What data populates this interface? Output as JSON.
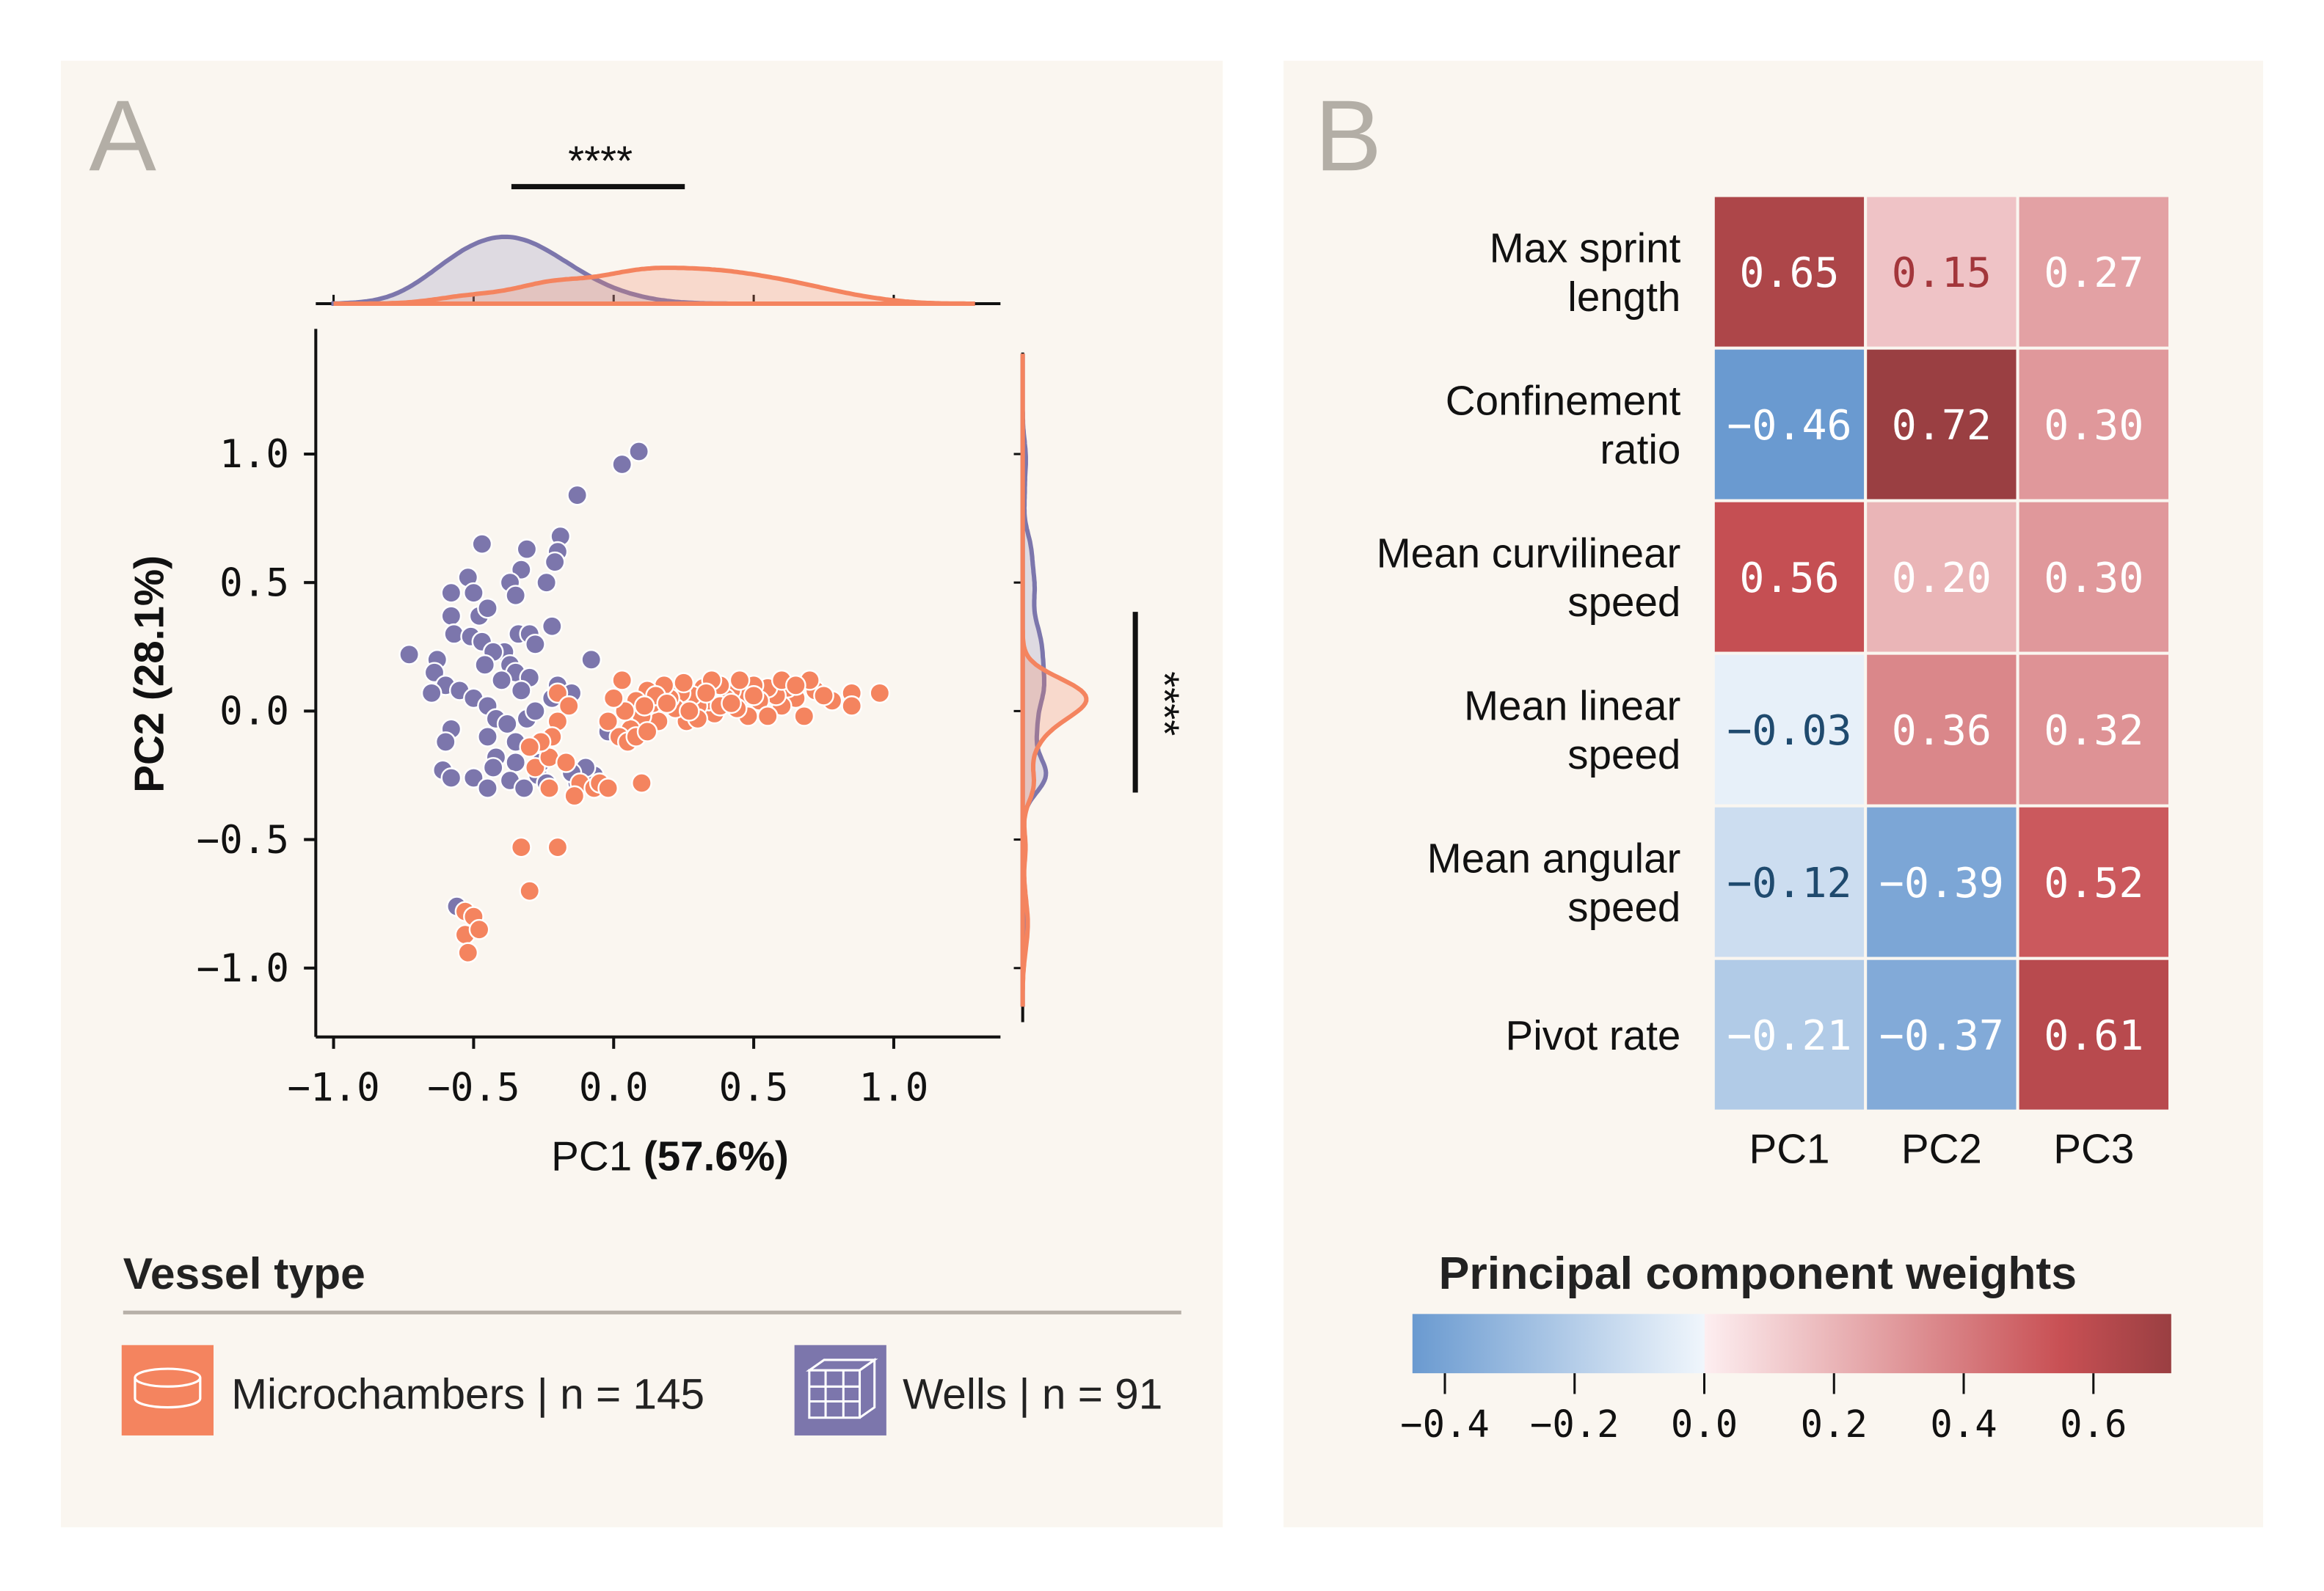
{
  "panel_a": {
    "letter": "A",
    "legend": {
      "title": "Vessel type",
      "items": [
        {
          "label": "Microchambers | n = 145",
          "color": "#f4845f",
          "icon": "cylinder-dish-icon"
        },
        {
          "label": "Wells | n = 91",
          "color": "#7c76ac",
          "icon": "well-plate-grid-icon"
        }
      ]
    }
  },
  "panel_b": {
    "letter": "B"
  },
  "chart_data": [
    {
      "type": "scatter",
      "xlabel_prefix": "PC1",
      "xlabel_pct": "(57.6%)",
      "ylabel_prefix": "PC2",
      "ylabel_pct": "(28.1%)",
      "xlim": [
        -1.05,
        1.35
      ],
      "ylim": [
        -1.18,
        1.48
      ],
      "xticks": [
        "−1.0",
        "−0.5",
        "0.0",
        "0.5",
        "1.0"
      ],
      "xtick_values": [
        -1.0,
        -0.5,
        0.0,
        0.5,
        1.0
      ],
      "yticks": [
        "1.0",
        "0.5",
        "0.0",
        "−0.5",
        "−1.0"
      ],
      "ytick_values": [
        1.0,
        0.5,
        0.0,
        -0.5,
        -1.0
      ],
      "marginals": "kde",
      "top_significance": "****",
      "right_significance": "****",
      "series": [
        {
          "name": "Microchambers",
          "color": "#f4845f",
          "points": [
            [
              0.95,
              0.07
            ],
            [
              0.85,
              0.07
            ],
            [
              0.85,
              0.02
            ],
            [
              0.78,
              0.04
            ],
            [
              0.72,
              0.08
            ],
            [
              0.68,
              -0.02
            ],
            [
              0.75,
              0.06
            ],
            [
              0.65,
              0.05
            ],
            [
              0.62,
              0.09
            ],
            [
              0.6,
              0.02
            ],
            [
              0.58,
              0.06
            ],
            [
              0.55,
              0.09
            ],
            [
              0.52,
              0.04
            ],
            [
              0.5,
              0.1
            ],
            [
              0.48,
              -0.02
            ],
            [
              0.46,
              0.06
            ],
            [
              0.44,
              0.01
            ],
            [
              0.42,
              0.08
            ],
            [
              0.4,
              0.05
            ],
            [
              0.38,
              0.1
            ],
            [
              0.36,
              -0.01
            ],
            [
              0.34,
              0.04
            ],
            [
              0.32,
              0.09
            ],
            [
              0.3,
              0.02
            ],
            [
              0.28,
              0.06
            ],
            [
              0.26,
              -0.04
            ],
            [
              0.24,
              0.07
            ],
            [
              0.22,
              0.01
            ],
            [
              0.2,
              0.05
            ],
            [
              0.18,
              0.1
            ],
            [
              0.16,
              -0.04
            ],
            [
              0.14,
              0.03
            ],
            [
              0.12,
              0.08
            ],
            [
              0.1,
              -0.02
            ],
            [
              0.08,
              0.04
            ],
            [
              0.06,
              -0.07
            ],
            [
              0.04,
              0.0
            ],
            [
              0.02,
              -0.1
            ],
            [
              0.0,
              0.05
            ],
            [
              -0.02,
              -0.04
            ],
            [
              0.05,
              -0.12
            ],
            [
              0.08,
              -0.1
            ],
            [
              0.12,
              -0.08
            ],
            [
              0.45,
              0.12
            ],
            [
              0.7,
              0.12
            ],
            [
              0.55,
              -0.02
            ],
            [
              0.38,
              0.02
            ],
            [
              0.3,
              -0.03
            ],
            [
              0.6,
              0.12
            ],
            [
              0.5,
              0.06
            ],
            [
              0.35,
              0.12
            ],
            [
              0.25,
              0.11
            ],
            [
              0.15,
              0.06
            ],
            [
              0.03,
              0.12
            ],
            [
              0.65,
              0.1
            ],
            [
              0.42,
              0.03
            ],
            [
              0.33,
              0.07
            ],
            [
              0.27,
              0.0
            ],
            [
              0.19,
              0.03
            ],
            [
              0.11,
              0.02
            ],
            [
              -0.2,
              0.07
            ],
            [
              -0.16,
              0.02
            ],
            [
              -0.2,
              -0.04
            ],
            [
              -0.28,
              -0.22
            ],
            [
              -0.23,
              -0.18
            ],
            [
              -0.17,
              -0.2
            ],
            [
              -0.12,
              -0.28
            ],
            [
              -0.07,
              -0.3
            ],
            [
              -0.05,
              -0.28
            ],
            [
              -0.02,
              -0.3
            ],
            [
              0.1,
              -0.28
            ],
            [
              -0.14,
              -0.33
            ],
            [
              -0.22,
              -0.1
            ],
            [
              -0.26,
              -0.12
            ],
            [
              -0.2,
              -0.53
            ],
            [
              -0.33,
              -0.53
            ],
            [
              -0.3,
              -0.7
            ],
            [
              -0.53,
              -0.78
            ],
            [
              -0.5,
              -0.8
            ],
            [
              -0.53,
              -0.87
            ],
            [
              -0.48,
              -0.85
            ],
            [
              -0.52,
              -0.94
            ],
            [
              -0.23,
              -0.3
            ],
            [
              -0.3,
              -0.14
            ]
          ]
        },
        {
          "name": "Wells",
          "color": "#7c76ac",
          "points": [
            [
              0.09,
              1.01
            ],
            [
              0.03,
              0.96
            ],
            [
              -0.13,
              0.84
            ],
            [
              -0.47,
              0.65
            ],
            [
              -0.19,
              0.68
            ],
            [
              -0.31,
              0.63
            ],
            [
              -0.2,
              0.62
            ],
            [
              -0.21,
              0.58
            ],
            [
              -0.33,
              0.55
            ],
            [
              -0.37,
              0.5
            ],
            [
              -0.52,
              0.52
            ],
            [
              -0.58,
              0.46
            ],
            [
              -0.5,
              0.46
            ],
            [
              -0.24,
              0.5
            ],
            [
              -0.35,
              0.45
            ],
            [
              -0.58,
              0.37
            ],
            [
              -0.48,
              0.37
            ],
            [
              -0.45,
              0.4
            ],
            [
              -0.57,
              0.3
            ],
            [
              -0.51,
              0.29
            ],
            [
              -0.47,
              0.27
            ],
            [
              -0.39,
              0.23
            ],
            [
              -0.34,
              0.3
            ],
            [
              -0.3,
              0.3
            ],
            [
              -0.22,
              0.33
            ],
            [
              -0.28,
              0.26
            ],
            [
              -0.43,
              0.23
            ],
            [
              -0.73,
              0.22
            ],
            [
              -0.63,
              0.2
            ],
            [
              -0.46,
              0.18
            ],
            [
              -0.08,
              0.2
            ],
            [
              -0.37,
              0.18
            ],
            [
              -0.35,
              0.15
            ],
            [
              -0.3,
              0.13
            ],
            [
              -0.64,
              0.15
            ],
            [
              -0.6,
              0.1
            ],
            [
              -0.65,
              0.07
            ],
            [
              -0.55,
              0.08
            ],
            [
              -0.4,
              0.12
            ],
            [
              -0.5,
              0.05
            ],
            [
              -0.33,
              0.08
            ],
            [
              -0.22,
              0.05
            ],
            [
              -0.45,
              0.02
            ],
            [
              -0.31,
              -0.03
            ],
            [
              -0.42,
              -0.03
            ],
            [
              -0.58,
              -0.07
            ],
            [
              -0.45,
              -0.1
            ],
            [
              -0.6,
              -0.12
            ],
            [
              -0.02,
              -0.08
            ],
            [
              -0.42,
              -0.18
            ],
            [
              -0.35,
              -0.2
            ],
            [
              -0.27,
              -0.25
            ],
            [
              -0.24,
              -0.28
            ],
            [
              -0.07,
              -0.25
            ],
            [
              -0.1,
              -0.22
            ],
            [
              -0.61,
              -0.23
            ],
            [
              -0.58,
              -0.26
            ],
            [
              -0.5,
              -0.26
            ],
            [
              -0.45,
              -0.3
            ],
            [
              -0.43,
              -0.22
            ],
            [
              -0.37,
              -0.27
            ],
            [
              -0.32,
              -0.3
            ],
            [
              -0.26,
              -0.2
            ],
            [
              -0.13,
              -0.28
            ],
            [
              -0.15,
              -0.24
            ],
            [
              -0.56,
              -0.76
            ],
            [
              -0.35,
              -0.12
            ],
            [
              -0.38,
              -0.05
            ],
            [
              -0.2,
              0.1
            ],
            [
              -0.15,
              0.07
            ],
            [
              -0.28,
              0.0
            ]
          ]
        }
      ]
    },
    {
      "type": "heatmap",
      "rows": [
        "Max sprint|length",
        "Confinement|ratio",
        "Mean curvilinear|speed",
        "Mean linear|speed",
        "Mean angular|speed",
        "Pivot rate"
      ],
      "columns": [
        "PC1",
        "PC2",
        "PC3"
      ],
      "values": [
        [
          0.65,
          0.15,
          0.27
        ],
        [
          -0.46,
          0.72,
          0.3
        ],
        [
          0.56,
          0.2,
          0.3
        ],
        [
          -0.03,
          0.36,
          0.32
        ],
        [
          -0.12,
          -0.39,
          0.52
        ],
        [
          -0.21,
          -0.37,
          0.61
        ]
      ],
      "value_labels": [
        [
          "0.65",
          "0.15",
          "0.27"
        ],
        [
          "−0.46",
          "0.72",
          "0.30"
        ],
        [
          "0.56",
          "0.20",
          "0.30"
        ],
        [
          "−0.03",
          "0.36",
          "0.32"
        ],
        [
          "−0.12",
          "−0.39",
          "0.52"
        ],
        [
          "−0.21",
          "−0.37",
          "0.61"
        ]
      ],
      "colorbar": {
        "title": "Principal component weights",
        "range": [
          -0.45,
          0.72
        ],
        "ticks": [
          "−0.4",
          "−0.2",
          "0.0",
          "0.2",
          "0.4",
          "0.6"
        ],
        "tick_values": [
          -0.4,
          -0.2,
          0.0,
          0.2,
          0.4,
          0.6
        ],
        "colors": [
          "#6a9ad0",
          "#f0f6fc",
          "#fdeef0",
          "#c85054",
          "#9a3f42"
        ]
      }
    }
  ]
}
